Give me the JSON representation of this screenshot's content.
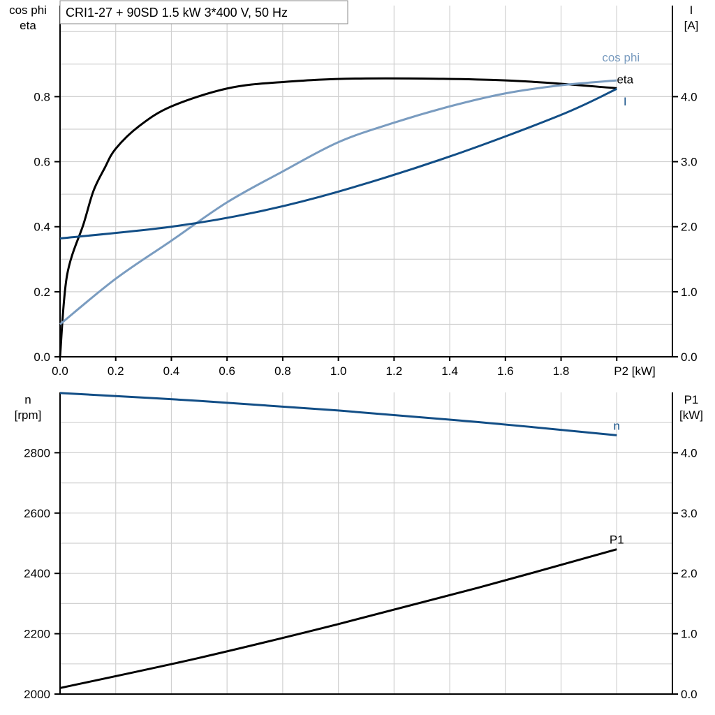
{
  "chart_data": [
    {
      "type": "line",
      "title": "CRI1-27 + 90SD   1.5 kW   3*400 V, 50 Hz",
      "xlabel": "P2 [kW]",
      "ylabel_lines": [
        "cos phi",
        "eta"
      ],
      "y2label_lines": [
        "I",
        "[A]"
      ],
      "xlim": [
        0,
        2.2
      ],
      "ylim": [
        0,
        1.08
      ],
      "y2lim": [
        0,
        5.4
      ],
      "grid": true,
      "xticks": [
        "0.0",
        "0.2",
        "0.4",
        "0.6",
        "0.8",
        "1.0",
        "1.2",
        "1.4",
        "1.6",
        "1.8"
      ],
      "yticks": [
        "0.0",
        "0.2",
        "0.4",
        "0.6",
        "0.8"
      ],
      "y2ticks": [
        "0.0",
        "1.0",
        "2.0",
        "3.0",
        "4.0"
      ],
      "series": [
        {
          "name": "eta",
          "axis": "left",
          "color": "#000000",
          "x": [
            0,
            0.025,
            0.085,
            0.12,
            0.16,
            0.2,
            0.285,
            0.4,
            0.6,
            0.8,
            1.1,
            1.6,
            2.0
          ],
          "y": [
            0,
            0.25,
            0.41,
            0.51,
            0.58,
            0.64,
            0.71,
            0.77,
            0.825,
            0.845,
            0.856,
            0.85,
            0.826
          ]
        },
        {
          "name": "cos phi",
          "axis": "left",
          "color": "#7a9cc0",
          "x": [
            0,
            0.2,
            0.4,
            0.6,
            0.8,
            1.0,
            1.2,
            1.4,
            1.6,
            1.8,
            2.0
          ],
          "y": [
            0.1,
            0.24,
            0.357,
            0.475,
            0.57,
            0.66,
            0.72,
            0.77,
            0.81,
            0.835,
            0.85
          ]
        },
        {
          "name": "I",
          "axis": "right",
          "color": "#124e86",
          "x": [
            0,
            0.4,
            0.7,
            1.0,
            1.4,
            1.8,
            2.0
          ],
          "y": [
            1.82,
            2.0,
            2.22,
            2.54,
            3.08,
            3.72,
            4.12
          ]
        }
      ]
    },
    {
      "type": "line",
      "ylabel_lines": [
        "n",
        "[rpm]"
      ],
      "y2label_lines": [
        "P1",
        "[kW]"
      ],
      "xlim": [
        0,
        2.2
      ],
      "ylim": [
        2000,
        3000
      ],
      "y2lim": [
        0,
        5.0
      ],
      "grid": true,
      "yticks": [
        "2000",
        "2200",
        "2400",
        "2600",
        "2800"
      ],
      "y2ticks": [
        "0.0",
        "1.0",
        "2.0",
        "3.0",
        "4.0"
      ],
      "series": [
        {
          "name": "n",
          "axis": "left",
          "color": "#124e86",
          "x": [
            0,
            0.5,
            1.0,
            1.5,
            2.0
          ],
          "y": [
            2998,
            2972,
            2940,
            2902,
            2858
          ]
        },
        {
          "name": "P1",
          "axis": "right",
          "color": "#000000",
          "x": [
            0,
            0.5,
            1.0,
            1.5,
            2.0
          ],
          "y": [
            0.1,
            0.6,
            1.16,
            1.76,
            2.4
          ]
        }
      ]
    }
  ]
}
